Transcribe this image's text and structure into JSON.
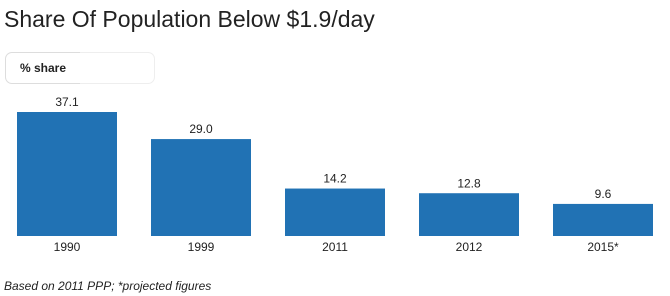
{
  "chart_data": {
    "type": "bar",
    "title": "Share Of Population Below $1.9/day",
    "categories": [
      "1990",
      "1999",
      "2011",
      "2012",
      "2015*"
    ],
    "values": [
      37.1,
      29.0,
      14.2,
      12.8,
      9.6
    ],
    "value_labels": [
      "37.1",
      "29.0",
      "14.2",
      "12.8",
      "9.6"
    ],
    "color": "#2172b4",
    "note": "Based on 2011 PPP; *projected figures"
  },
  "controls": {
    "share_button": "% share"
  }
}
